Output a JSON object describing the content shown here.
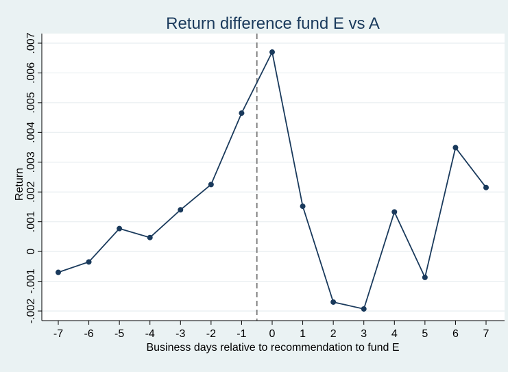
{
  "chart_data": {
    "type": "line",
    "title": "Return difference fund E vs A",
    "xlabel": "Business days relative to recommendation to fund E",
    "ylabel": "Return",
    "x": [
      -7,
      -6,
      -5,
      -4,
      -3,
      -2,
      -1,
      0,
      1,
      2,
      3,
      4,
      5,
      6,
      7
    ],
    "series": [
      {
        "values": [
          -0.0007,
          -0.00035,
          0.00077,
          0.00047,
          0.0014,
          0.00225,
          0.00465,
          0.0067,
          0.00152,
          -0.0017,
          -0.00193,
          0.00133,
          -0.00087,
          0.00349,
          0.00215
        ]
      }
    ],
    "xlim": [
      -7,
      7
    ],
    "ylim": [
      -0.002,
      0.007
    ],
    "x_ticks": [
      "-7",
      "-6",
      "-5",
      "-4",
      "-3",
      "-2",
      "-1",
      "0",
      "1",
      "2",
      "3",
      "4",
      "5",
      "6",
      "7"
    ],
    "y_ticks": [
      {
        "value": -0.002,
        "label": "-.002"
      },
      {
        "value": -0.001,
        "label": "-.001"
      },
      {
        "value": 0,
        "label": "0"
      },
      {
        "value": 0.001,
        "label": ".001"
      },
      {
        "value": 0.002,
        "label": ".002"
      },
      {
        "value": 0.003,
        "label": ".003"
      },
      {
        "value": 0.004,
        "label": ".004"
      },
      {
        "value": 0.005,
        "label": ".005"
      },
      {
        "value": 0.006,
        "label": ".006"
      },
      {
        "value": 0.007,
        "label": ".007"
      }
    ],
    "reference_line": {
      "x": -0.5,
      "style": "dashed"
    },
    "grid": "horizontal",
    "colors": {
      "line": "#1a3a5c",
      "background": "#eaf2f3",
      "plot_background": "#ffffff",
      "grid": "#e8eef0",
      "reference": "#777777"
    }
  }
}
